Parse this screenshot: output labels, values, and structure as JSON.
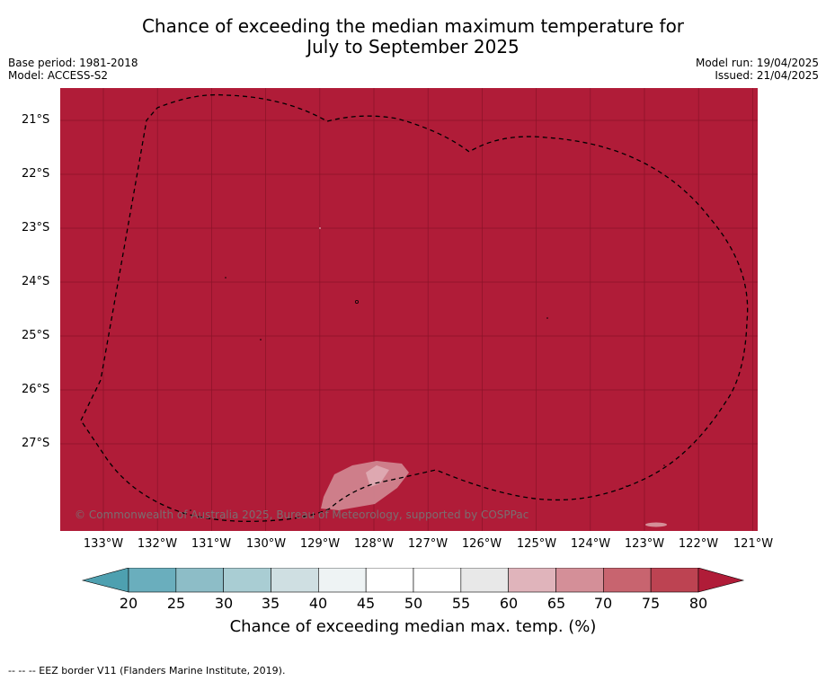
{
  "title": {
    "line1": "Chance of exceeding the median maximum temperature for",
    "line2": "July to September 2025"
  },
  "meta_left": {
    "base_period": "Base period: 1981-2018",
    "model": "Model: ACCESS-S2"
  },
  "meta_right": {
    "model_run": "Model run: 19/04/2025",
    "issued": "Issued: 21/04/2025"
  },
  "map": {
    "background_color": "#b01c38",
    "lat_ticks": [
      "21°S",
      "22°S",
      "23°S",
      "24°S",
      "25°S",
      "26°S",
      "27°S"
    ],
    "lon_ticks": [
      "133°W",
      "132°W",
      "131°W",
      "130°W",
      "129°W",
      "128°W",
      "127°W",
      "126°W",
      "125°W",
      "124°W",
      "123°W",
      "122°W",
      "121°W"
    ],
    "copyright": "© Commonwealth of Australia 2025, Bureau of Meteorology, supported by COSPPac"
  },
  "colorbar": {
    "labels": [
      "20",
      "25",
      "30",
      "35",
      "40",
      "45",
      "50",
      "55",
      "60",
      "65",
      "70",
      "75",
      "80"
    ],
    "colors": [
      "#4ea0b0",
      "#6aaebd",
      "#8dbdc7",
      "#a9cdd3",
      "#cfdfe2",
      "#eef3f4",
      "#ffffff",
      "#ffffff",
      "#e8e8e8",
      "#e0b4bb",
      "#d48f98",
      "#c8646f",
      "#bd4352",
      "#b01c38"
    ],
    "title": "Chance of exceeding median max. temp. (%)"
  },
  "footer": {
    "legend_text": "--  --  -- EEZ border V11 (Flanders Marine Institute, 2019)."
  }
}
